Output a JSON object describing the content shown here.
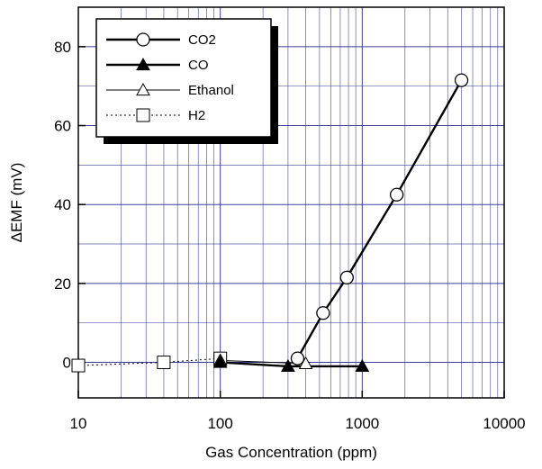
{
  "chart_data": {
    "type": "line",
    "xlabel": "Gas Concentration (ppm)",
    "ylabel": "ΔEMF (mV)",
    "xscale": "log",
    "xlim": [
      10,
      10000
    ],
    "ylim": [
      -9,
      90
    ],
    "xticks": [
      10,
      100,
      1000,
      10000
    ],
    "xtick_labels": [
      "10",
      "100",
      "1000",
      "10000"
    ],
    "yticks": [
      0,
      20,
      40,
      60,
      80
    ],
    "ytick_labels": [
      "0",
      "20",
      "40",
      "60",
      "80"
    ],
    "grid": true,
    "legend_position": "top-left",
    "series": [
      {
        "name": "CO2",
        "marker": "open-circle",
        "line": "solid-thick",
        "x": [
          350,
          530,
          780,
          1750,
          5000
        ],
        "y": [
          1,
          12.5,
          21.5,
          42.5,
          71.5
        ]
      },
      {
        "name": "CO",
        "marker": "filled-triangle",
        "line": "solid-thick",
        "x": [
          100,
          300,
          1000
        ],
        "y": [
          0,
          -1,
          -1
        ]
      },
      {
        "name": "Ethanol",
        "marker": "open-triangle",
        "line": "solid-thin",
        "x": [
          100,
          400
        ],
        "y": [
          0.5,
          -0.3
        ]
      },
      {
        "name": "H2",
        "marker": "open-square",
        "line": "dotted",
        "x": [
          10,
          40,
          100
        ],
        "y": [
          -0.8,
          0,
          1
        ]
      }
    ]
  }
}
